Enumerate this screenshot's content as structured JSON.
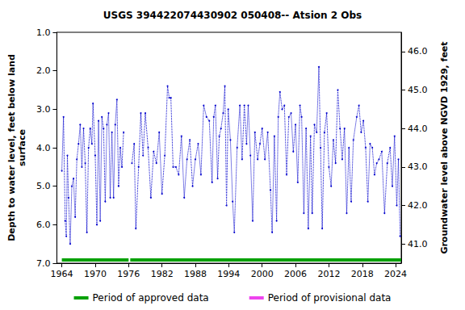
{
  "chart_data": {
    "type": "line",
    "title": "USGS 394422074430902 050408-- Atsion 2 Obs",
    "ylabel": "Depth to water level, feet below land\nsurface",
    "y2label": "Groundwater level above NGVD 1929, feet",
    "x": [
      1964.0,
      1964.3,
      1964.6,
      1964.8,
      1965.0,
      1965.2,
      1965.5,
      1965.8,
      1966.1,
      1966.4,
      1966.7,
      1967.0,
      1967.3,
      1967.6,
      1967.9,
      1968.2,
      1968.5,
      1968.8,
      1969.1,
      1969.4,
      1969.6,
      1970.0,
      1970.3,
      1970.6,
      1970.9,
      1971.2,
      1971.5,
      1971.8,
      1972.1,
      1972.4,
      1972.7,
      1973.0,
      1973.3,
      1973.6,
      1973.9,
      1974.2,
      1974.5,
      1974.8,
      1975.1,
      1975.8,
      1976.6,
      1977.0,
      1977.3,
      1977.8,
      1978.2,
      1978.6,
      1979.0,
      1979.5,
      1980.0,
      1980.5,
      1981.0,
      1981.5,
      1982.0,
      1982.5,
      1983.0,
      1983.3,
      1983.6,
      1984.0,
      1984.5,
      1985.0,
      1985.5,
      1986.0,
      1986.5,
      1987.0,
      1987.5,
      1988.0,
      1988.5,
      1989.0,
      1989.5,
      1990.0,
      1990.5,
      1991.0,
      1991.3,
      1991.6,
      1992.0,
      1992.3,
      1992.6,
      1993.0,
      1993.3,
      1993.6,
      1993.9,
      1994.3,
      1994.7,
      1995.0,
      1995.5,
      1996.0,
      1996.4,
      1996.8,
      1997.2,
      1997.5,
      1997.9,
      1998.3,
      1998.7,
      1999.2,
      1999.6,
      2000.0,
      2000.5,
      2001.0,
      2001.5,
      2001.8,
      2002.2,
      2002.6,
      2002.9,
      2003.2,
      2003.6,
      2004.0,
      2004.4,
      2004.8,
      2005.2,
      2005.6,
      2006.0,
      2006.4,
      2006.8,
      2007.1,
      2007.5,
      2007.9,
      2008.3,
      2008.7,
      2009.0,
      2009.4,
      2009.8,
      2010.2,
      2010.5,
      2010.8,
      2011.2,
      2011.6,
      2012.0,
      2012.4,
      2012.8,
      2013.2,
      2013.6,
      2014.0,
      2014.4,
      2014.8,
      2015.2,
      2015.6,
      2016.0,
      2016.4,
      2017.0,
      2017.4,
      2017.8,
      2018.2,
      2018.6,
      2019.0,
      2019.4,
      2019.8,
      2020.2,
      2020.6,
      2021.0,
      2021.5,
      2022.0,
      2022.5,
      2023.0,
      2023.4,
      2023.8,
      2024.2,
      2024.5,
      2024.8
    ],
    "series": [
      {
        "color": "#0000cc",
        "marker": "circle",
        "line_style": "dotted",
        "values": [
          4.6,
          3.2,
          5.9,
          6.3,
          4.2,
          5.3,
          6.5,
          5.0,
          4.8,
          5.8,
          4.3,
          3.9,
          3.4,
          4.5,
          3.5,
          4.4,
          6.2,
          4.0,
          3.5,
          3.9,
          2.85,
          4.2,
          6.0,
          3.3,
          5.9,
          3.2,
          3.5,
          5.4,
          3.4,
          3.1,
          5.3,
          3.6,
          5.3,
          3.4,
          2.75,
          5.0,
          4.0,
          4.5,
          3.6,
          null,
          4.4,
          3.9,
          6.1,
          4.5,
          3.1,
          4.2,
          3.1,
          4.0,
          5.3,
          4.1,
          4.4,
          3.6,
          5.2,
          4.2,
          2.4,
          2.7,
          2.7,
          4.5,
          4.5,
          4.7,
          3.7,
          5.3,
          4.3,
          3.8,
          5.0,
          4.3,
          3.9,
          4.7,
          2.9,
          3.2,
          3.3,
          4.9,
          3.2,
          2.9,
          4.8,
          3.7,
          3.5,
          3.1,
          2.4,
          5.5,
          3.0,
          3.8,
          5.4,
          6.2,
          4.0,
          2.9,
          4.3,
          2.9,
          3.9,
          2.9,
          4.2,
          5.9,
          3.6,
          4.3,
          3.9,
          3.5,
          4.3,
          3.6,
          5.1,
          6.2,
          3.7,
          5.9,
          3.2,
          2.55,
          3.0,
          2.9,
          4.7,
          3.2,
          3.1,
          4.1,
          3.4,
          4.9,
          2.9,
          3.2,
          5.7,
          3.5,
          6.1,
          3.7,
          5.7,
          3.4,
          3.6,
          1.9,
          4.0,
          6.1,
          3.6,
          3.1,
          4.5,
          5.0,
          3.8,
          4.4,
          2.5,
          3.5,
          4.3,
          3.5,
          5.7,
          4.0,
          5.4,
          3.8,
          3.2,
          2.9,
          3.6,
          3.3,
          4.0,
          5.4,
          3.9,
          4.0,
          4.7,
          4.4,
          4.3,
          4.1,
          5.7,
          4.4,
          4.0,
          5.0,
          3.7,
          5.5,
          4.3,
          6.3
        ]
      }
    ],
    "periods": [
      {
        "name": "Period of approved data",
        "color": "#00a000",
        "ranges": [
          [
            1964.0,
            1976.0
          ],
          [
            1976.3,
            2025.0
          ]
        ]
      },
      {
        "name": "Period of provisional data",
        "color": "#ee44ee",
        "ranges": []
      }
    ],
    "xlim": [
      1963.1,
      2025.0
    ],
    "xticks": [
      1964,
      1970,
      1976,
      1982,
      1988,
      1994,
      2000,
      2006,
      2012,
      2018,
      2024
    ],
    "ylim": [
      7.0,
      1.0
    ],
    "yticks": [
      {
        "value": 1.0,
        "label": "1.0"
      },
      {
        "value": 2.0,
        "label": "2.0"
      },
      {
        "value": 3.0,
        "label": "3.0"
      },
      {
        "value": 4.0,
        "label": "4.0"
      },
      {
        "value": 5.0,
        "label": "5.0"
      },
      {
        "value": 6.0,
        "label": "6.0"
      },
      {
        "value": 7.0,
        "label": "7.0"
      }
    ],
    "y2lim": [
      40.5,
      46.5
    ],
    "y2ticks": [
      {
        "value": 41.0,
        "label": "41.0"
      },
      {
        "value": 42.0,
        "label": "42.0"
      },
      {
        "value": 43.0,
        "label": "43.0"
      },
      {
        "value": 44.0,
        "label": "44.0"
      },
      {
        "value": 45.0,
        "label": "45.0"
      },
      {
        "value": 46.0,
        "label": "46.0"
      }
    ],
    "grid": false,
    "legend": "bottom"
  }
}
